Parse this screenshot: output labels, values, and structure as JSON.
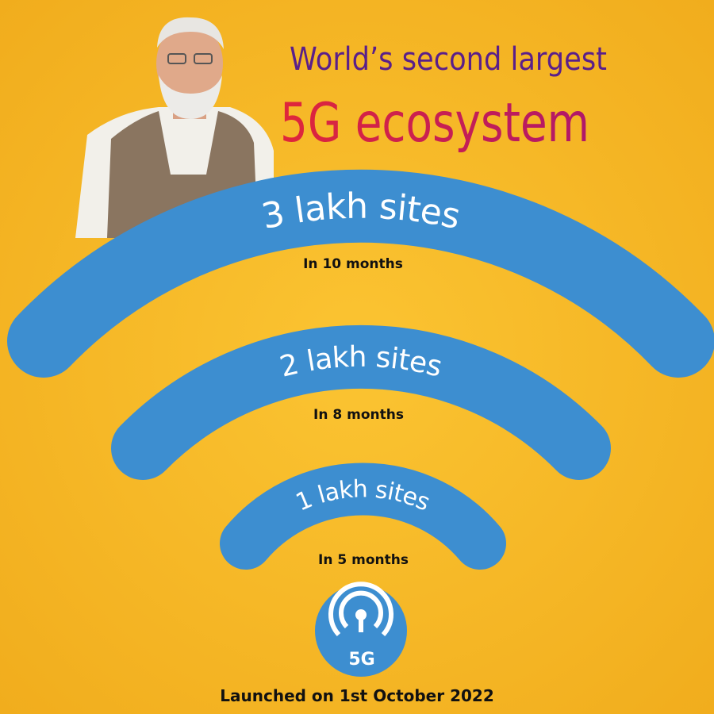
{
  "header": {
    "line1": "World’s second largest",
    "line2": "5G ecosystem"
  },
  "arcs": [
    {
      "label": "3 lakh sites",
      "period": "In 10 months"
    },
    {
      "label": "2 lakh sites",
      "period": "In 8 months"
    },
    {
      "label": "1 lakh sites",
      "period": "In 5 months"
    }
  ],
  "badge": "5G",
  "footer": "Launched on 1st October 2022"
}
